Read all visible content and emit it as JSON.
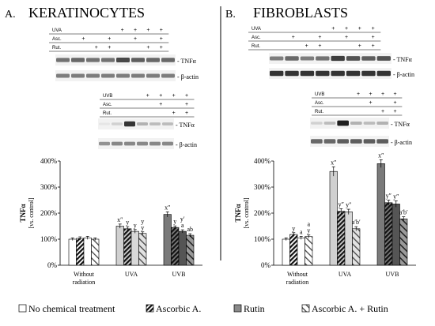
{
  "panels": [
    {
      "letter": "A.",
      "title": "KERATINOCYTES",
      "blot_uva": {
        "rows": [
          {
            "label": "UVA",
            "signs": [
              "",
              "",
              "",
              "",
              "+",
              "+",
              "+",
              "+"
            ]
          },
          {
            "label": "Asc.",
            "signs": [
              "",
              "+",
              "",
              "+",
              "",
              "+",
              "",
              "+"
            ]
          },
          {
            "label": "Rut.",
            "signs": [
              "",
              "",
              "+",
              "+",
              "",
              "",
              "+",
              "+"
            ]
          }
        ],
        "bands": [
          "- TNFα",
          "- β-actin"
        ],
        "tnf_intensity": [
          0.55,
          0.6,
          0.55,
          0.55,
          0.75,
          0.65,
          0.6,
          0.6
        ],
        "actin_intensity": [
          0.5,
          0.5,
          0.5,
          0.5,
          0.5,
          0.5,
          0.5,
          0.5
        ]
      },
      "blot_uvb": {
        "rows": [
          {
            "label": "UVB",
            "signs": [
              "",
              "",
              "+",
              "+",
              "+",
              "+"
            ]
          },
          {
            "label": "Asc.",
            "signs": [
              "",
              "",
              "",
              "+",
              "",
              "+"
            ]
          },
          {
            "label": "Rut.",
            "signs": [
              "",
              "",
              "",
              "",
              "+",
              "+"
            ]
          }
        ],
        "bands": [
          "- TNFα",
          "- β-actin"
        ],
        "tnf_intensity": [
          0.0,
          0.1,
          0.85,
          0.25,
          0.2,
          0.2
        ],
        "actin_intensity": [
          0.4,
          0.45,
          0.45,
          0.45,
          0.45,
          0.45
        ]
      }
    },
    {
      "letter": "B.",
      "title": "FIBROBLASTS",
      "blot_uva": {
        "rows": [
          {
            "label": "UVA",
            "signs": [
              "",
              "",
              "",
              "",
              "+",
              "+",
              "+",
              "+"
            ]
          },
          {
            "label": "Asc.",
            "signs": [
              "",
              "+",
              "",
              "+",
              "",
              "+",
              "",
              "+"
            ]
          },
          {
            "label": "Rut.",
            "signs": [
              "",
              "",
              "+",
              "+",
              "",
              "",
              "+",
              "+"
            ]
          }
        ],
        "bands": [
          "- TNFα",
          "- β-actin"
        ],
        "tnf_intensity": [
          0.5,
          0.6,
          0.5,
          0.55,
          0.8,
          0.7,
          0.65,
          0.7
        ],
        "actin_intensity": [
          0.85,
          0.85,
          0.85,
          0.85,
          0.85,
          0.85,
          0.85,
          0.85
        ]
      },
      "blot_uvb": {
        "rows": [
          {
            "label": "UVB",
            "signs": [
              "",
              "",
              "+",
              "+",
              "+",
              "+"
            ]
          },
          {
            "label": "Asc.",
            "signs": [
              "",
              "",
              "",
              "+",
              "",
              "+"
            ]
          },
          {
            "label": "Rut.",
            "signs": [
              "",
              "",
              "",
              "",
              "+",
              "+"
            ]
          }
        ],
        "bands": [
          "- TNFα",
          "- β-actin"
        ],
        "tnf_intensity": [
          0.1,
          0.2,
          0.95,
          0.25,
          0.2,
          0.25
        ],
        "actin_intensity": [
          0.6,
          0.6,
          0.65,
          0.65,
          0.65,
          0.65
        ]
      }
    }
  ],
  "legend": [
    "No chemical treatment",
    "Ascorbic A.",
    "Rutin",
    "Ascorbic A. + Rutin"
  ],
  "colors": {
    "control": "#ffffff",
    "uva": "#d0d0d0",
    "uvb": "#7a7a7a"
  },
  "chart_data": [
    {
      "type": "bar",
      "title": "",
      "ylabel": "TNFα",
      "ylabel2": "[vs. control]",
      "xlabel": "",
      "ylim": [
        0,
        400
      ],
      "yticks": [
        "0%",
        "100%",
        "200%",
        "300%",
        "400%"
      ],
      "categories": [
        "Without radiation",
        "UVA",
        "UVB"
      ],
      "series": [
        {
          "name": "No chemical treatment",
          "values": [
            100,
            150,
            195
          ],
          "errors": [
            5,
            8,
            10
          ]
        },
        {
          "name": "Ascorbic A.",
          "values": [
            103,
            140,
            145
          ],
          "errors": [
            6,
            8,
            6
          ]
        },
        {
          "name": "Rutin",
          "values": [
            105,
            130,
            130
          ],
          "errors": [
            6,
            7,
            6
          ]
        },
        {
          "name": "Ascorbic A. + Rutin",
          "values": [
            100,
            122,
            115
          ],
          "errors": [
            5,
            6,
            6
          ]
        }
      ],
      "annotations": [
        [
          "",
          "",
          "",
          ""
        ],
        [
          "x″",
          "y",
          "y",
          "y"
        ],
        [
          "x″",
          "y",
          "a",
          "ab"
        ]
      ],
      "annotations_row2": [
        [
          "",
          "",
          "",
          ""
        ],
        [
          "",
          "",
          "",
          ""
        ],
        [
          "",
          "",
          "y′",
          ""
        ]
      ],
      "annotations_top": [
        [
          "",
          "",
          "",
          ""
        ],
        [
          "",
          "",
          "",
          "y"
        ],
        [
          "",
          "",
          "",
          ""
        ]
      ]
    },
    {
      "type": "bar",
      "title": "",
      "ylabel": "TNFα",
      "ylabel2": "[vs. control]",
      "xlabel": "",
      "ylim": [
        0,
        400
      ],
      "yticks": [
        "0%",
        "100%",
        "200%",
        "300%",
        "400%"
      ],
      "categories": [
        "Without radiation",
        "UVA",
        "UVB"
      ],
      "series": [
        {
          "name": "No chemical treatment",
          "values": [
            100,
            360,
            390
          ],
          "errors": [
            5,
            18,
            15
          ]
        },
        {
          "name": "Ascorbic A.",
          "values": [
            118,
            207,
            240
          ],
          "errors": [
            7,
            10,
            10
          ]
        },
        {
          "name": "Rutin",
          "values": [
            105,
            205,
            235
          ],
          "errors": [
            6,
            10,
            12
          ]
        },
        {
          "name": "Ascorbic A. + Rutin",
          "values": [
            110,
            140,
            178
          ],
          "errors": [
            6,
            8,
            8
          ]
        }
      ],
      "annotations": [
        [
          "",
          "y",
          "a",
          "y"
        ],
        [
          "x″",
          "y″",
          "y″",
          "a′b′"
        ],
        [
          "x″",
          "y″",
          "y″",
          "a′b′"
        ]
      ],
      "annotations_row2": [
        [
          "",
          "",
          "",
          "a"
        ],
        [
          "",
          "",
          "",
          ""
        ],
        [
          "",
          "",
          "",
          ""
        ]
      ],
      "annotations_top": [
        [
          "",
          "",
          "",
          ""
        ],
        [
          "",
          "",
          "",
          ""
        ],
        [
          "",
          "",
          "",
          ""
        ]
      ]
    }
  ]
}
